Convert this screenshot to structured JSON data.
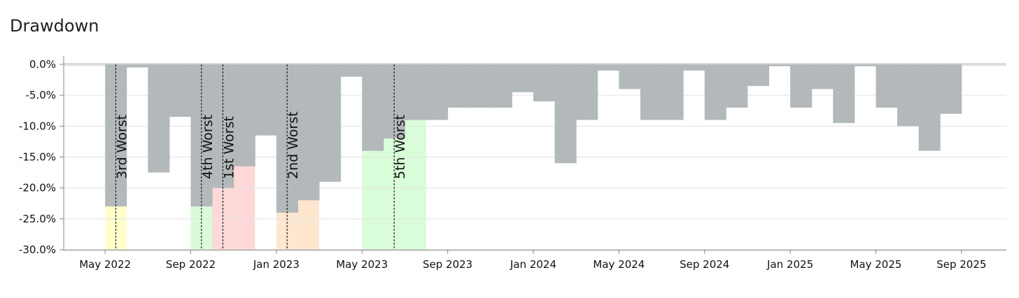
{
  "chart_data": {
    "type": "bar",
    "title": "Drawdown",
    "color": "#b3b9bb",
    "x": [
      "2022-05",
      "2022-06",
      "2022-07",
      "2022-08",
      "2022-09",
      "2022-10",
      "2022-11",
      "2022-12",
      "2023-01",
      "2023-02",
      "2023-03",
      "2023-04",
      "2023-05",
      "2023-06",
      "2023-07",
      "2023-08",
      "2023-09",
      "2023-10",
      "2023-11",
      "2023-12",
      "2024-01",
      "2024-02",
      "2024-03",
      "2024-04",
      "2024-05",
      "2024-06",
      "2024-07",
      "2024-08",
      "2024-09",
      "2024-10",
      "2024-11",
      "2024-12",
      "2025-01",
      "2025-02",
      "2025-03",
      "2025-04",
      "2025-05",
      "2025-06",
      "2025-07",
      "2025-08"
    ],
    "values": [
      -23,
      -0.5,
      -17.5,
      -8.5,
      -23,
      -20,
      -16.5,
      -11.5,
      -24,
      -22,
      -19,
      -2,
      -14,
      -12,
      -9,
      -9,
      -7,
      -7,
      -7,
      -4.5,
      -6,
      -16,
      -9,
      -1,
      -4,
      -9,
      -9,
      -1,
      -9,
      -7,
      -3.5,
      -0.3,
      -7,
      -4,
      -9.5,
      -0.3,
      -7,
      -10,
      -14,
      -8
    ],
    "xlim": [
      "2022-03",
      "2025-11"
    ],
    "xticks": [
      {
        "value": "2022-05",
        "label": "May 2022"
      },
      {
        "value": "2022-09",
        "label": "Sep 2022"
      },
      {
        "value": "2023-01",
        "label": "Jan 2023"
      },
      {
        "value": "2023-05",
        "label": "May 2023"
      },
      {
        "value": "2023-09",
        "label": "Sep 2023"
      },
      {
        "value": "2024-01",
        "label": "Jan 2024"
      },
      {
        "value": "2024-05",
        "label": "May 2024"
      },
      {
        "value": "2024-09",
        "label": "Sep 2024"
      },
      {
        "value": "2025-01",
        "label": "Jan 2025"
      },
      {
        "value": "2025-05",
        "label": "May 2025"
      },
      {
        "value": "2025-09",
        "label": "Sep 2025"
      }
    ],
    "ylim": [
      -30,
      0
    ],
    "yticks": [
      {
        "value": 0,
        "label": "0.0%"
      },
      {
        "value": -5,
        "label": "-5.0%"
      },
      {
        "value": -10,
        "label": "-10.0%"
      },
      {
        "value": -15,
        "label": "-15.0%"
      },
      {
        "value": -20,
        "label": "-20.0%"
      },
      {
        "value": -25,
        "label": "-25.0%"
      },
      {
        "value": -30,
        "label": "-30.0%"
      }
    ],
    "grid": true,
    "periods": [
      {
        "name": "3rd Worst",
        "start": "2022-05",
        "end": "2022-06",
        "trough": "2022-05",
        "color": "#ffffcc"
      },
      {
        "name": "4th Worst",
        "start": "2022-09",
        "end": "2022-10",
        "trough": "2022-09",
        "color": "#d8fbd8"
      },
      {
        "name": "1st Worst",
        "start": "2022-10",
        "end": "2022-12",
        "trough": "2022-10",
        "color": "#ffd8d8"
      },
      {
        "name": "2nd Worst",
        "start": "2023-01",
        "end": "2023-03",
        "trough": "2023-01",
        "color": "#ffe6cf"
      },
      {
        "name": "5th Worst",
        "start": "2023-05",
        "end": "2023-08",
        "trough": "2023-06",
        "color": "#d8fdd8"
      }
    ]
  }
}
